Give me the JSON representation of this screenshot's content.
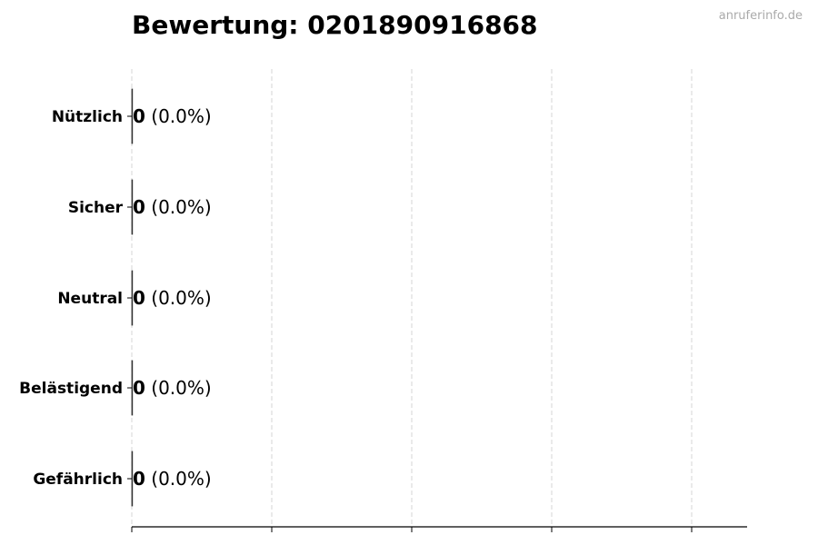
{
  "chart_data": {
    "type": "bar",
    "orientation": "horizontal",
    "title": "Bewertung: 0201890916868",
    "categories": [
      "Nützlich",
      "Sicher",
      "Neutral",
      "Belästigend",
      "Gefährlich"
    ],
    "values": [
      0,
      0,
      0,
      0,
      0
    ],
    "data_labels": [
      {
        "count": "0",
        "percent": "(0.0%)"
      },
      {
        "count": "0",
        "percent": "(0.0%)"
      },
      {
        "count": "0",
        "percent": "(0.0%)"
      },
      {
        "count": "0",
        "percent": "(0.0%)"
      },
      {
        "count": "0",
        "percent": "(0.0%)"
      }
    ],
    "xlabel": "",
    "ylabel": "",
    "x_tick_labels_shown": false,
    "x_tick_count": 5,
    "grid": "vertical dashed",
    "grid_color": "#cccccc",
    "bar_edge_color": "#333333"
  },
  "watermark": "anruferinfo.de"
}
